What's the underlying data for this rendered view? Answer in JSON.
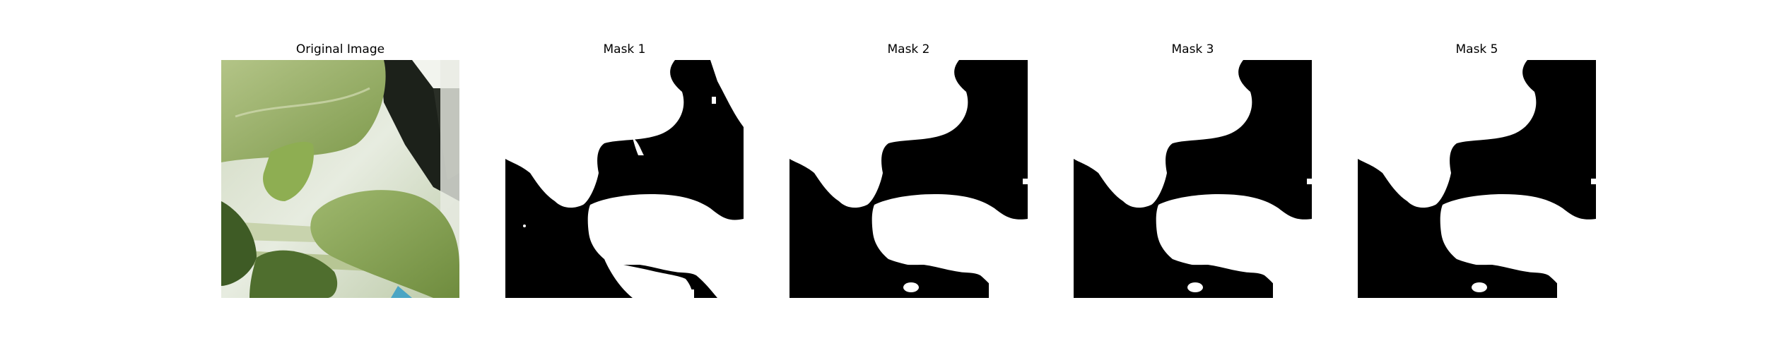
{
  "panels": [
    {
      "title": "Original Image"
    },
    {
      "title": "Mask 1"
    },
    {
      "title": "Mask 2"
    },
    {
      "title": "Mask 3"
    },
    {
      "title": "Mask 5"
    }
  ],
  "colors": {
    "background": "#ffffff",
    "mask_fill": "#ffffff",
    "mask_background": "#000000",
    "leaf_light": "#bfcf92",
    "leaf_mid": "#9fb86e",
    "leaf_dark": "#4f6e2e"
  }
}
